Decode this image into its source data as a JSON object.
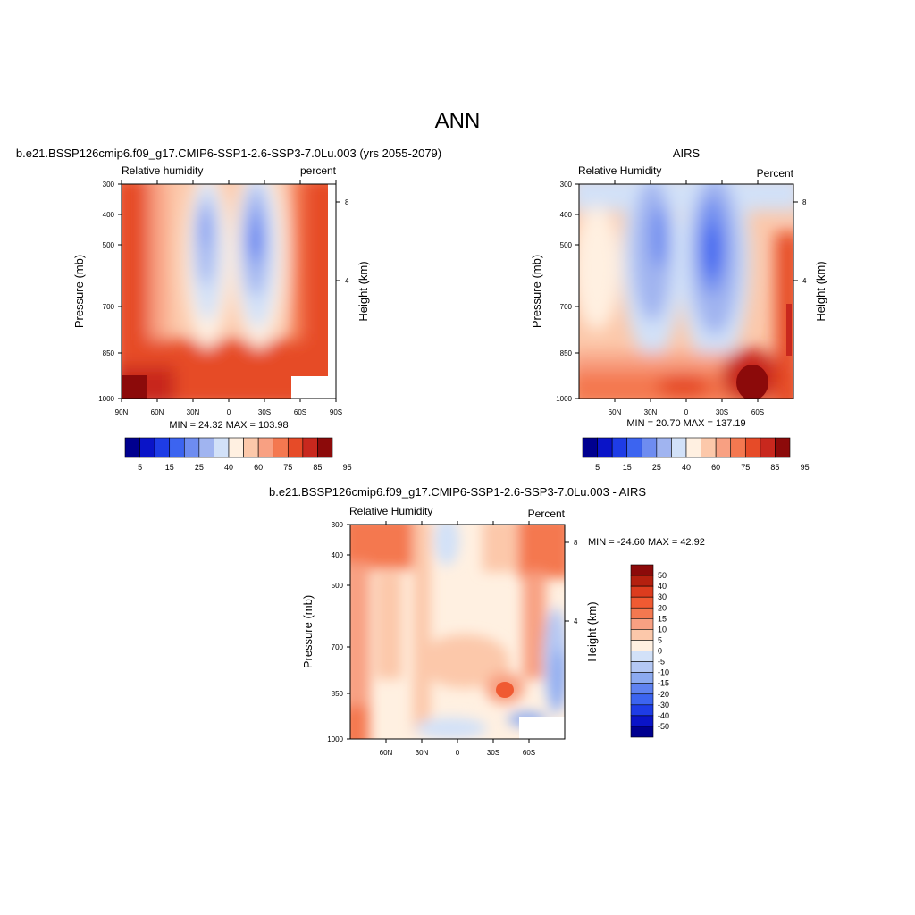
{
  "figure": {
    "title": "ANN"
  },
  "colormaps": {
    "abs": [
      "#00008f",
      "#0a14c8",
      "#1e3ce6",
      "#3c64f0",
      "#6e8cf0",
      "#a0b4f0",
      "#d2e1f8",
      "#fff0e1",
      "#fcc8aa",
      "#f8a082",
      "#f47850",
      "#e64b28",
      "#c8281e",
      "#8c0a0a"
    ],
    "diff": [
      "#00008f",
      "#0a14c8",
      "#1e3ce6",
      "#3c64f0",
      "#5f82f0",
      "#8caaf0",
      "#b4c8f4",
      "#d2e1f8",
      "#fff0e1",
      "#fcc8aa",
      "#f8a082",
      "#f47850",
      "#f05a32",
      "#dc3c1e",
      "#b4200f",
      "#8c0a0a"
    ]
  },
  "chart_data": [
    {
      "type": "heatmap",
      "title": "b.e21.BSSP126cmip6.f09_g17.CMIP6-SSP1-2.6-SSP3-7.0Lu.003 (yrs 2055-2079)",
      "left_label": "Relative humidity",
      "right_label": "percent",
      "ylabel": "Pressure (mb)",
      "y2label": "Height (km)",
      "x_ticks": [
        "90N",
        "60N",
        "30N",
        "0",
        "30S",
        "60S",
        "90S"
      ],
      "y_ticks": [
        "300",
        "400",
        "500",
        "700",
        "850",
        "1000"
      ],
      "y2_ticks": [
        "8",
        "4"
      ],
      "stats": "MIN =  24.32  MAX = 103.98",
      "min": 24.32,
      "max": 103.98,
      "ylim": [
        300,
        1000
      ],
      "levels": [
        5,
        10,
        15,
        20,
        25,
        30,
        40,
        50,
        60,
        70,
        75,
        80,
        85,
        90,
        95
      ],
      "colorbar_labels": [
        "5",
        "15",
        "25",
        "40",
        "60",
        "75",
        "85",
        "95"
      ],
      "missing_region": "poleward of ~55S below ~900 mb"
    },
    {
      "type": "heatmap",
      "title": "AIRS",
      "left_label": "Relative Humidity",
      "right_label": "Percent",
      "ylabel": "Pressure (mb)",
      "y2label": "Height (km)",
      "x_ticks": [
        "60N",
        "30N",
        "0",
        "30S",
        "60S"
      ],
      "y_ticks": [
        "300",
        "400",
        "500",
        "700",
        "850",
        "1000"
      ],
      "y2_ticks": [
        "8",
        "4"
      ],
      "stats": "MIN =  20.70  MAX = 137.19",
      "min": 20.7,
      "max": 137.19,
      "ylim": [
        300,
        1000
      ],
      "levels": [
        5,
        10,
        15,
        20,
        25,
        30,
        40,
        50,
        60,
        70,
        75,
        80,
        85,
        90,
        95
      ],
      "colorbar_labels": [
        "5",
        "15",
        "25",
        "40",
        "60",
        "75",
        "85",
        "95"
      ]
    },
    {
      "type": "heatmap",
      "title": "b.e21.BSSP126cmip6.f09_g17.CMIP6-SSP1-2.6-SSP3-7.0Lu.003 - AIRS",
      "left_label": "Relative Humidity",
      "right_label": "Percent",
      "ylabel": "Pressure (mb)",
      "y2label": "Height (km)",
      "x_ticks": [
        "60N",
        "30N",
        "0",
        "30S",
        "60S"
      ],
      "y_ticks": [
        "300",
        "400",
        "500",
        "700",
        "850",
        "1000"
      ],
      "y2_ticks": [
        "8",
        "4"
      ],
      "stats": "MIN = -24.60  MAX =  42.92",
      "min": -24.6,
      "max": 42.92,
      "ylim": [
        300,
        1000
      ],
      "levels": [
        -50,
        -40,
        -30,
        -20,
        -15,
        -10,
        -5,
        0,
        5,
        10,
        15,
        20,
        30,
        40,
        50
      ],
      "colorbar_labels": [
        "50",
        "40",
        "30",
        "20",
        "15",
        "10",
        "5",
        "0",
        "-5",
        "-10",
        "-15",
        "-20",
        "-30",
        "-40",
        "-50"
      ],
      "missing_region": "poleward of ~55S below ~910 mb"
    }
  ]
}
